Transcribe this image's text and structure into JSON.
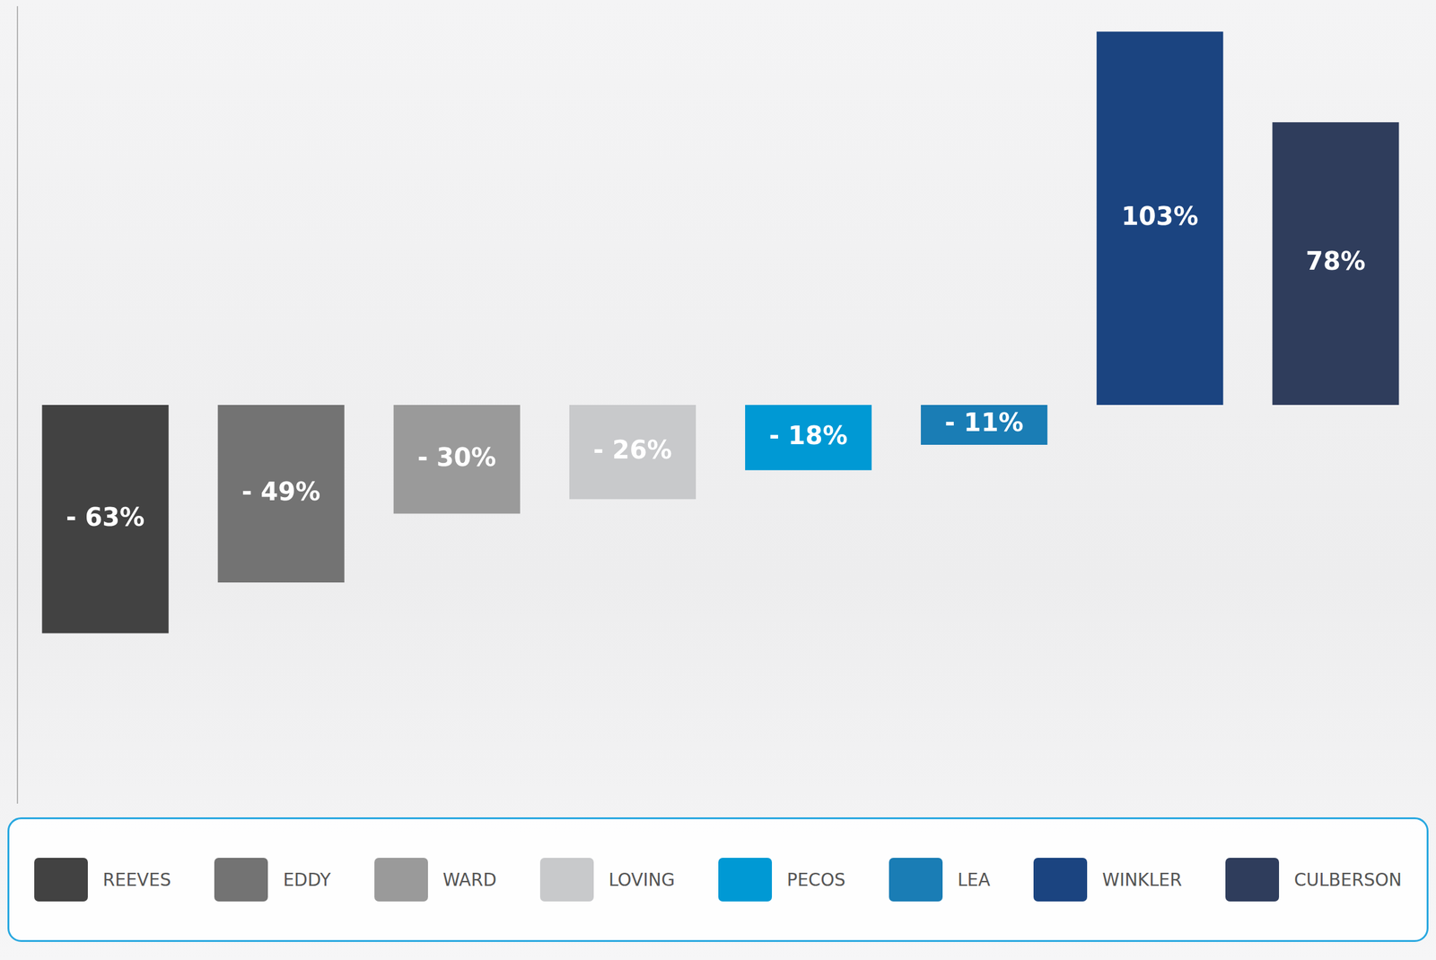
{
  "chart_data": {
    "type": "bar",
    "categories": [
      "REEVES",
      "EDDY",
      "WARD",
      "LOVING",
      "PECOS",
      "LEA",
      "WINKLER",
      "CULBERSON"
    ],
    "values": [
      -63,
      -49,
      -30,
      -26,
      -18,
      -11,
      103,
      78
    ],
    "value_labels": [
      "- 63%",
      "- 49%",
      "- 30%",
      "- 26%",
      "- 18%",
      "- 11%",
      "103%",
      "78%"
    ],
    "colors": [
      "#424242",
      "#737373",
      "#9a9a9a",
      "#c8c9cb",
      "#0099d4",
      "#1a7db5",
      "#1b4480",
      "#2f3d5c"
    ],
    "ylim": [
      -110,
      110
    ],
    "grid": false,
    "legend": "bottom",
    "data_labels": true,
    "tick_labels": false
  }
}
